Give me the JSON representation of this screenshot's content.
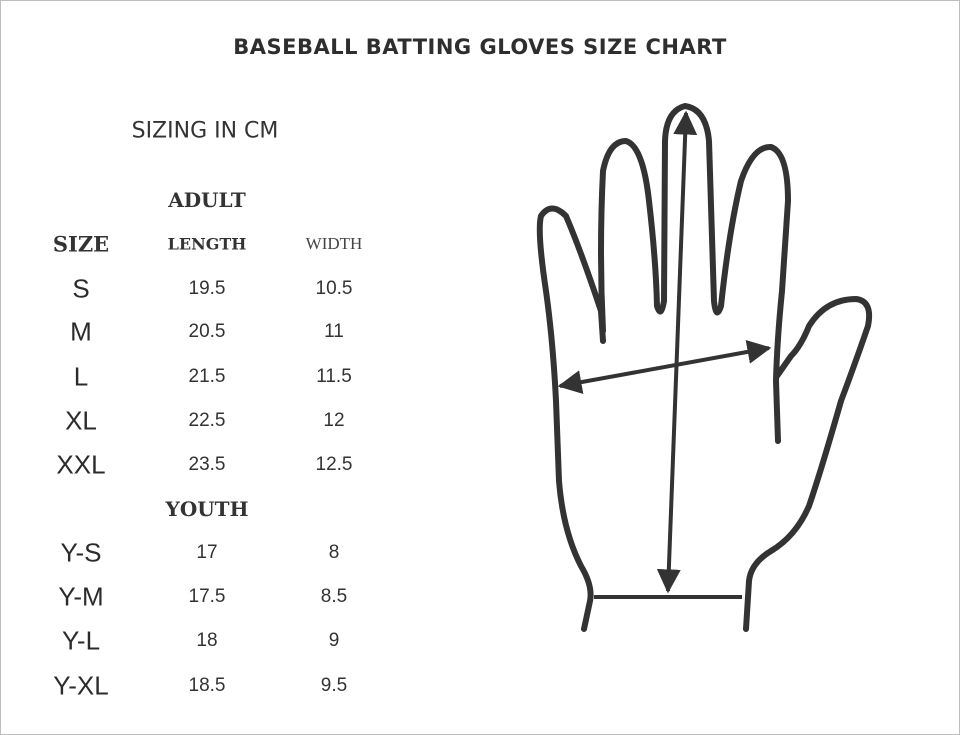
{
  "title": "BASEBALL BATTING GLOVES SIZE CHART",
  "units_label": "SIZING IN CM",
  "headers": {
    "size": "SIZE",
    "length": "LENGTH",
    "width": "WIDTH"
  },
  "groups": [
    {
      "label": "ADULT",
      "rows": [
        {
          "size": "S",
          "length": "19.5",
          "width": "10.5"
        },
        {
          "size": "M",
          "length": "20.5",
          "width": "11"
        },
        {
          "size": "L",
          "length": "21.5",
          "width": "11.5"
        },
        {
          "size": "XL",
          "length": "22.5",
          "width": "12"
        },
        {
          "size": "XXL",
          "length": "23.5",
          "width": "12.5"
        }
      ]
    },
    {
      "label": "YOUTH",
      "rows": [
        {
          "size": "Y-S",
          "length": "17",
          "width": "8"
        },
        {
          "size": "Y-M",
          "length": "17.5",
          "width": "8.5"
        },
        {
          "size": "Y-L",
          "length": "18",
          "width": "9"
        },
        {
          "size": "Y-XL",
          "length": "18.5",
          "width": "9.5"
        }
      ]
    }
  ],
  "colors": {
    "ink": "#333333",
    "border": "#bdbdbd"
  }
}
